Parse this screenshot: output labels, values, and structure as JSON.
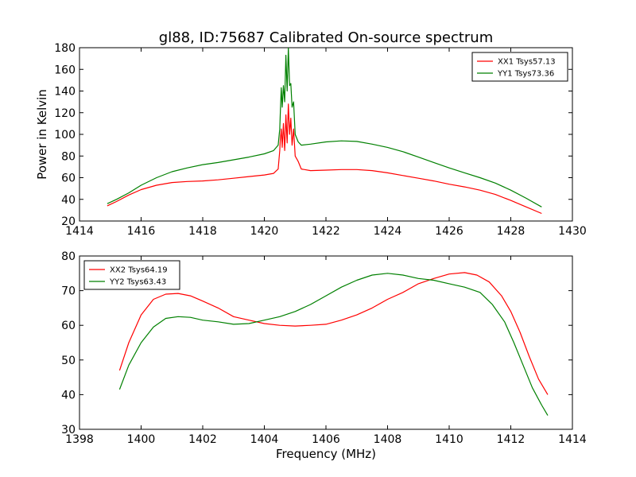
{
  "figure": {
    "title": "gl88, ID:75687 Calibrated On-source spectrum"
  },
  "chart_data": [
    {
      "type": "line",
      "ylabel": "Power in Kelvin",
      "xlabel": "",
      "xlim": [
        1414,
        1430
      ],
      "ylim": [
        20,
        180
      ],
      "xticks": [
        1414,
        1416,
        1418,
        1420,
        1422,
        1424,
        1426,
        1428,
        1430
      ],
      "yticks": [
        20,
        40,
        60,
        80,
        100,
        120,
        140,
        160,
        180
      ],
      "grid": false,
      "legend_position": "top-right",
      "series": [
        {
          "name": "XX1 Tsys57.13",
          "color": "#ff0000",
          "points": [
            [
              1414.9,
              34
            ],
            [
              1415.2,
              38
            ],
            [
              1415.6,
              44
            ],
            [
              1416.0,
              49
            ],
            [
              1416.5,
              53
            ],
            [
              1417.0,
              55.5
            ],
            [
              1417.5,
              56.5
            ],
            [
              1418.0,
              57
            ],
            [
              1418.5,
              58
            ],
            [
              1419.0,
              59.5
            ],
            [
              1419.5,
              61
            ],
            [
              1420.0,
              62.5
            ],
            [
              1420.3,
              64
            ],
            [
              1420.45,
              68
            ],
            [
              1420.5,
              85
            ],
            [
              1420.52,
              95
            ],
            [
              1420.55,
              105
            ],
            [
              1420.58,
              88
            ],
            [
              1420.62,
              110
            ],
            [
              1420.66,
              85
            ],
            [
              1420.7,
              118
            ],
            [
              1420.74,
              92
            ],
            [
              1420.78,
              128
            ],
            [
              1420.82,
              100
            ],
            [
              1420.86,
              115
            ],
            [
              1420.9,
              90
            ],
            [
              1420.95,
              105
            ],
            [
              1421.0,
              80
            ],
            [
              1421.1,
              75
            ],
            [
              1421.2,
              68
            ],
            [
              1421.5,
              66.5
            ],
            [
              1422.0,
              67
            ],
            [
              1422.5,
              67.5
            ],
            [
              1423.0,
              67.5
            ],
            [
              1423.5,
              66.5
            ],
            [
              1424.0,
              64.5
            ],
            [
              1424.5,
              62
            ],
            [
              1425.0,
              59.5
            ],
            [
              1425.5,
              57
            ],
            [
              1426.0,
              54
            ],
            [
              1426.5,
              51.5
            ],
            [
              1427.0,
              48.5
            ],
            [
              1427.5,
              44.5
            ],
            [
              1428.0,
              39
            ],
            [
              1428.5,
              33
            ],
            [
              1429.0,
              27
            ]
          ]
        },
        {
          "name": "YY1 Tsys73.36",
          "color": "#008000",
          "points": [
            [
              1414.9,
              36
            ],
            [
              1415.2,
              40
            ],
            [
              1415.6,
              46
            ],
            [
              1416.0,
              53
            ],
            [
              1416.5,
              60
            ],
            [
              1417.0,
              65.5
            ],
            [
              1417.5,
              69
            ],
            [
              1418.0,
              72
            ],
            [
              1418.5,
              74
            ],
            [
              1419.0,
              76.5
            ],
            [
              1419.5,
              79
            ],
            [
              1420.0,
              82
            ],
            [
              1420.3,
              85
            ],
            [
              1420.45,
              90
            ],
            [
              1420.5,
              105
            ],
            [
              1420.52,
              120
            ],
            [
              1420.55,
              143
            ],
            [
              1420.58,
              125
            ],
            [
              1420.62,
              145
            ],
            [
              1420.66,
              130
            ],
            [
              1420.7,
              173
            ],
            [
              1420.74,
              140
            ],
            [
              1420.78,
              180
            ],
            [
              1420.82,
              145
            ],
            [
              1420.86,
              147
            ],
            [
              1420.9,
              125
            ],
            [
              1420.95,
              130
            ],
            [
              1421.0,
              100
            ],
            [
              1421.1,
              93
            ],
            [
              1421.2,
              90
            ],
            [
              1421.5,
              91
            ],
            [
              1422.0,
              93
            ],
            [
              1422.5,
              94
            ],
            [
              1423.0,
              93.5
            ],
            [
              1423.5,
              91
            ],
            [
              1424.0,
              88
            ],
            [
              1424.5,
              84
            ],
            [
              1425.0,
              79
            ],
            [
              1425.5,
              74
            ],
            [
              1426.0,
              69
            ],
            [
              1426.5,
              64.5
            ],
            [
              1427.0,
              60
            ],
            [
              1427.5,
              55
            ],
            [
              1428.0,
              48.5
            ],
            [
              1428.5,
              41
            ],
            [
              1429.0,
              33
            ]
          ]
        }
      ]
    },
    {
      "type": "line",
      "ylabel": "",
      "xlabel": "Frequency (MHz)",
      "xlim": [
        1398,
        1414
      ],
      "ylim": [
        30,
        80
      ],
      "xticks": [
        1398,
        1400,
        1402,
        1404,
        1406,
        1408,
        1410,
        1412,
        1414
      ],
      "yticks": [
        30,
        40,
        50,
        60,
        70,
        80
      ],
      "grid": false,
      "legend_position": "top-left",
      "series": [
        {
          "name": "XX2 Tsys64.19",
          "color": "#ff0000",
          "points": [
            [
              1399.3,
              47
            ],
            [
              1399.6,
              55
            ],
            [
              1400.0,
              63
            ],
            [
              1400.4,
              67.5
            ],
            [
              1400.8,
              69
            ],
            [
              1401.2,
              69.2
            ],
            [
              1401.6,
              68.5
            ],
            [
              1402.0,
              67
            ],
            [
              1402.5,
              65
            ],
            [
              1403.0,
              62.5
            ],
            [
              1403.5,
              61.5
            ],
            [
              1404.0,
              60.5
            ],
            [
              1404.5,
              60
            ],
            [
              1405.0,
              59.8
            ],
            [
              1405.5,
              60
            ],
            [
              1406.0,
              60.3
            ],
            [
              1406.5,
              61.5
            ],
            [
              1407.0,
              63
            ],
            [
              1407.5,
              65
            ],
            [
              1408.0,
              67.5
            ],
            [
              1408.5,
              69.5
            ],
            [
              1409.0,
              72
            ],
            [
              1409.5,
              73.5
            ],
            [
              1410.0,
              74.8
            ],
            [
              1410.5,
              75.2
            ],
            [
              1410.9,
              74.5
            ],
            [
              1411.3,
              72.5
            ],
            [
              1411.7,
              68.5
            ],
            [
              1412.0,
              64
            ],
            [
              1412.3,
              58
            ],
            [
              1412.6,
              51
            ],
            [
              1412.9,
              44.5
            ],
            [
              1413.2,
              40
            ]
          ]
        },
        {
          "name": "YY2 Tsys63.43",
          "color": "#008000",
          "points": [
            [
              1399.3,
              41.5
            ],
            [
              1399.6,
              48.5
            ],
            [
              1400.0,
              55
            ],
            [
              1400.4,
              59.5
            ],
            [
              1400.8,
              62
            ],
            [
              1401.2,
              62.5
            ],
            [
              1401.6,
              62.3
            ],
            [
              1402.0,
              61.5
            ],
            [
              1402.5,
              61
            ],
            [
              1403.0,
              60.3
            ],
            [
              1403.5,
              60.5
            ],
            [
              1404.0,
              61.5
            ],
            [
              1404.5,
              62.5
            ],
            [
              1405.0,
              64
            ],
            [
              1405.5,
              66
            ],
            [
              1406.0,
              68.5
            ],
            [
              1406.5,
              71
            ],
            [
              1407.0,
              73
            ],
            [
              1407.5,
              74.5
            ],
            [
              1408.0,
              75
            ],
            [
              1408.5,
              74.5
            ],
            [
              1409.0,
              73.5
            ],
            [
              1409.5,
              73
            ],
            [
              1410.0,
              72
            ],
            [
              1410.5,
              71
            ],
            [
              1411.0,
              69.5
            ],
            [
              1411.4,
              66
            ],
            [
              1411.8,
              61
            ],
            [
              1412.1,
              55
            ],
            [
              1412.4,
              48.5
            ],
            [
              1412.7,
              42
            ],
            [
              1413.0,
              37
            ],
            [
              1413.2,
              34
            ]
          ]
        }
      ]
    }
  ]
}
